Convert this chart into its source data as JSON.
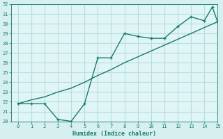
{
  "xlabel": "Humidex (Indice chaleur)",
  "x_jagged": [
    0,
    1,
    2,
    3,
    4,
    5,
    6,
    7,
    8,
    9,
    10,
    11,
    12,
    13,
    14,
    14.6,
    15
  ],
  "y_jagged": [
    21.8,
    21.8,
    21.8,
    20.2,
    20.0,
    21.8,
    26.5,
    26.5,
    29.0,
    28.7,
    28.5,
    28.5,
    29.7,
    30.7,
    30.3,
    31.7,
    30.2
  ],
  "x_smooth": [
    0,
    1,
    2,
    3,
    4,
    5,
    6,
    7,
    8,
    9,
    10,
    11,
    12,
    13,
    14,
    15
  ],
  "y_smooth": [
    21.8,
    22.2,
    22.5,
    23.0,
    23.4,
    24.0,
    24.7,
    25.3,
    26.0,
    26.6,
    27.2,
    27.8,
    28.4,
    29.0,
    29.6,
    30.2
  ],
  "line_color": "#1a7a6e",
  "bg_color": "#d6f0f0",
  "grid_color": "#b8dede",
  "plot_bg": "#e0f5f5",
  "ylim": [
    20,
    32
  ],
  "xlim": [
    -0.5,
    15
  ],
  "yticks": [
    20,
    21,
    22,
    23,
    24,
    25,
    26,
    27,
    28,
    29,
    30,
    31,
    32
  ],
  "xticks": [
    0,
    1,
    2,
    3,
    4,
    5,
    6,
    7,
    8,
    9,
    10,
    11,
    12,
    13,
    14,
    15
  ],
  "marker_x": [
    0,
    1,
    2,
    3,
    4,
    5,
    6,
    7,
    8,
    9,
    10,
    11,
    12,
    13,
    14,
    14.6,
    15
  ],
  "marker_y": [
    21.8,
    21.8,
    21.8,
    20.2,
    20.0,
    21.8,
    26.5,
    26.5,
    29.0,
    28.7,
    28.5,
    28.5,
    29.7,
    30.7,
    30.3,
    31.7,
    30.2
  ]
}
